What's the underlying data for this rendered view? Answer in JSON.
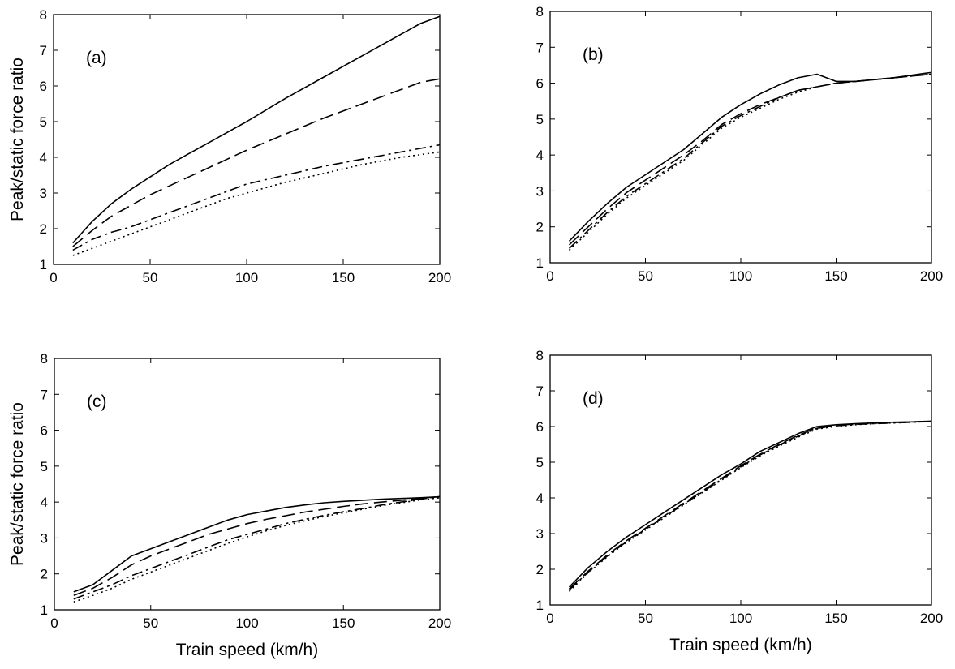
{
  "chart_data": [
    {
      "type": "line",
      "panel_label": "(a)",
      "xlabel": "",
      "ylabel": "Peak/static force ratio",
      "xlim": [
        0,
        200
      ],
      "ylim": [
        1,
        8
      ],
      "xticks": [
        0,
        50,
        100,
        150,
        200
      ],
      "yticks": [
        1,
        2,
        3,
        4,
        5,
        6,
        7,
        8
      ],
      "grid": false,
      "series": [
        {
          "style": "solid",
          "x": [
            10,
            20,
            30,
            40,
            50,
            60,
            70,
            80,
            90,
            100,
            120,
            140,
            160,
            180,
            190,
            200
          ],
          "y": [
            1.6,
            2.2,
            2.7,
            3.1,
            3.45,
            3.8,
            4.1,
            4.4,
            4.7,
            5.0,
            5.65,
            6.25,
            6.85,
            7.45,
            7.75,
            7.95
          ]
        },
        {
          "style": "dashed",
          "x": [
            10,
            20,
            30,
            40,
            50,
            60,
            70,
            80,
            90,
            100,
            120,
            140,
            160,
            180,
            190,
            200
          ],
          "y": [
            1.5,
            1.95,
            2.35,
            2.65,
            2.95,
            3.2,
            3.45,
            3.7,
            3.95,
            4.2,
            4.65,
            5.1,
            5.5,
            5.9,
            6.1,
            6.2
          ]
        },
        {
          "style": "dashdot",
          "x": [
            10,
            20,
            30,
            40,
            50,
            60,
            70,
            80,
            90,
            100,
            120,
            140,
            160,
            180,
            200
          ],
          "y": [
            1.4,
            1.7,
            1.9,
            2.05,
            2.25,
            2.45,
            2.65,
            2.85,
            3.05,
            3.25,
            3.5,
            3.75,
            3.95,
            4.15,
            4.35
          ]
        },
        {
          "style": "dotted",
          "x": [
            10,
            20,
            30,
            40,
            50,
            60,
            70,
            80,
            90,
            100,
            120,
            140,
            160,
            180,
            200
          ],
          "y": [
            1.25,
            1.45,
            1.65,
            1.85,
            2.05,
            2.25,
            2.45,
            2.65,
            2.85,
            3.0,
            3.3,
            3.55,
            3.8,
            4.0,
            4.15
          ]
        }
      ]
    },
    {
      "type": "line",
      "panel_label": "(b)",
      "xlabel": "",
      "ylabel": "",
      "xlim": [
        0,
        200
      ],
      "ylim": [
        1,
        8
      ],
      "xticks": [
        0,
        50,
        100,
        150,
        200
      ],
      "yticks": [
        1,
        2,
        3,
        4,
        5,
        6,
        7,
        8
      ],
      "grid": false,
      "series": [
        {
          "style": "solid",
          "x": [
            10,
            20,
            30,
            40,
            50,
            60,
            70,
            80,
            90,
            100,
            110,
            120,
            130,
            140,
            150,
            160,
            180,
            200
          ],
          "y": [
            1.6,
            2.15,
            2.65,
            3.1,
            3.45,
            3.8,
            4.15,
            4.6,
            5.05,
            5.4,
            5.7,
            5.95,
            6.15,
            6.25,
            6.05,
            6.05,
            6.15,
            6.3
          ]
        },
        {
          "style": "dashed",
          "x": [
            10,
            20,
            30,
            40,
            50,
            60,
            70,
            80,
            90,
            100,
            110,
            120,
            130,
            140,
            150,
            160,
            180,
            200
          ],
          "y": [
            1.5,
            2.0,
            2.5,
            2.95,
            3.3,
            3.65,
            4.0,
            4.4,
            4.85,
            5.15,
            5.4,
            5.6,
            5.8,
            5.9,
            6.0,
            6.05,
            6.15,
            6.25
          ]
        },
        {
          "style": "dashdot",
          "x": [
            10,
            20,
            30,
            40,
            50,
            60,
            70,
            80,
            90,
            100,
            110,
            120,
            130,
            140,
            150,
            160,
            180,
            200
          ],
          "y": [
            1.4,
            1.9,
            2.4,
            2.85,
            3.2,
            3.55,
            3.9,
            4.35,
            4.8,
            5.1,
            5.35,
            5.6,
            5.8,
            5.9,
            6.0,
            6.05,
            6.15,
            6.25
          ]
        },
        {
          "style": "dotted",
          "x": [
            10,
            20,
            30,
            40,
            50,
            60,
            70,
            80,
            90,
            100,
            110,
            120,
            130,
            140,
            150,
            160,
            180,
            200
          ],
          "y": [
            1.35,
            1.85,
            2.35,
            2.8,
            3.15,
            3.5,
            3.85,
            4.3,
            4.75,
            5.05,
            5.3,
            5.55,
            5.75,
            5.9,
            6.0,
            6.05,
            6.15,
            6.25
          ]
        }
      ]
    },
    {
      "type": "line",
      "panel_label": "(c)",
      "xlabel": "Train speed (km/h)",
      "ylabel": "Peak/static force ratio",
      "xlim": [
        0,
        200
      ],
      "ylim": [
        1,
        8
      ],
      "xticks": [
        0,
        50,
        100,
        150,
        200
      ],
      "yticks": [
        1,
        2,
        3,
        4,
        5,
        6,
        7,
        8
      ],
      "grid": false,
      "series": [
        {
          "style": "solid",
          "x": [
            10,
            20,
            30,
            40,
            50,
            60,
            70,
            80,
            90,
            100,
            110,
            120,
            130,
            140,
            150,
            160,
            170,
            180,
            190,
            200
          ],
          "y": [
            1.5,
            1.7,
            2.1,
            2.5,
            2.7,
            2.9,
            3.1,
            3.3,
            3.5,
            3.65,
            3.75,
            3.85,
            3.92,
            3.98,
            4.02,
            4.05,
            4.08,
            4.1,
            4.12,
            4.15
          ]
        },
        {
          "style": "dashed",
          "x": [
            10,
            20,
            30,
            40,
            50,
            60,
            70,
            80,
            90,
            100,
            110,
            120,
            130,
            140,
            150,
            160,
            170,
            180,
            190,
            200
          ],
          "y": [
            1.4,
            1.6,
            1.9,
            2.25,
            2.5,
            2.7,
            2.9,
            3.1,
            3.25,
            3.4,
            3.52,
            3.62,
            3.72,
            3.8,
            3.88,
            3.95,
            4.0,
            4.05,
            4.1,
            4.15
          ]
        },
        {
          "style": "dashdot",
          "x": [
            10,
            20,
            30,
            40,
            50,
            60,
            70,
            80,
            90,
            100,
            110,
            120,
            130,
            140,
            150,
            160,
            170,
            180,
            190,
            200
          ],
          "y": [
            1.3,
            1.5,
            1.7,
            1.95,
            2.15,
            2.35,
            2.55,
            2.75,
            2.95,
            3.1,
            3.25,
            3.4,
            3.52,
            3.63,
            3.73,
            3.82,
            3.92,
            4.0,
            4.08,
            4.15
          ]
        },
        {
          "style": "dotted",
          "x": [
            10,
            20,
            30,
            40,
            50,
            60,
            70,
            80,
            90,
            100,
            110,
            120,
            130,
            140,
            150,
            160,
            170,
            180,
            190,
            200
          ],
          "y": [
            1.22,
            1.4,
            1.6,
            1.85,
            2.05,
            2.25,
            2.45,
            2.65,
            2.85,
            3.03,
            3.2,
            3.35,
            3.48,
            3.6,
            3.7,
            3.8,
            3.9,
            3.98,
            4.06,
            4.12
          ]
        }
      ]
    },
    {
      "type": "line",
      "panel_label": "(d)",
      "xlabel": "Train speed (km/h)",
      "ylabel": "",
      "xlim": [
        0,
        200
      ],
      "ylim": [
        1,
        8
      ],
      "xticks": [
        0,
        50,
        100,
        150,
        200
      ],
      "yticks": [
        1,
        2,
        3,
        4,
        5,
        6,
        7,
        8
      ],
      "grid": false,
      "series": [
        {
          "style": "solid",
          "x": [
            10,
            20,
            30,
            40,
            50,
            60,
            70,
            80,
            90,
            100,
            110,
            120,
            130,
            140,
            150,
            160,
            170,
            180,
            190,
            200
          ],
          "y": [
            1.5,
            2.05,
            2.5,
            2.9,
            3.25,
            3.6,
            3.95,
            4.3,
            4.65,
            4.95,
            5.3,
            5.55,
            5.8,
            6.0,
            6.05,
            6.08,
            6.1,
            6.12,
            6.13,
            6.15
          ]
        },
        {
          "style": "dashed",
          "x": [
            10,
            20,
            30,
            40,
            50,
            60,
            70,
            80,
            90,
            100,
            110,
            120,
            130,
            140,
            150,
            160,
            170,
            180,
            190,
            200
          ],
          "y": [
            1.45,
            1.95,
            2.4,
            2.8,
            3.15,
            3.5,
            3.85,
            4.2,
            4.55,
            4.9,
            5.22,
            5.5,
            5.75,
            5.97,
            6.03,
            6.07,
            6.09,
            6.11,
            6.13,
            6.15
          ]
        },
        {
          "style": "dashdot",
          "x": [
            10,
            20,
            30,
            40,
            50,
            60,
            70,
            80,
            90,
            100,
            110,
            120,
            130,
            140,
            150,
            160,
            170,
            180,
            190,
            200
          ],
          "y": [
            1.42,
            1.92,
            2.37,
            2.77,
            3.12,
            3.47,
            3.82,
            4.17,
            4.52,
            4.87,
            5.2,
            5.48,
            5.73,
            5.95,
            6.02,
            6.06,
            6.08,
            6.1,
            6.12,
            6.14
          ]
        },
        {
          "style": "dotted",
          "x": [
            10,
            20,
            30,
            40,
            50,
            60,
            70,
            80,
            90,
            100,
            110,
            120,
            130,
            140,
            150,
            160,
            170,
            180,
            190,
            200
          ],
          "y": [
            1.38,
            1.9,
            2.35,
            2.75,
            3.1,
            3.45,
            3.8,
            4.15,
            4.5,
            4.85,
            5.17,
            5.45,
            5.7,
            5.93,
            6.0,
            6.05,
            6.08,
            6.1,
            6.12,
            6.14
          ]
        }
      ]
    }
  ]
}
